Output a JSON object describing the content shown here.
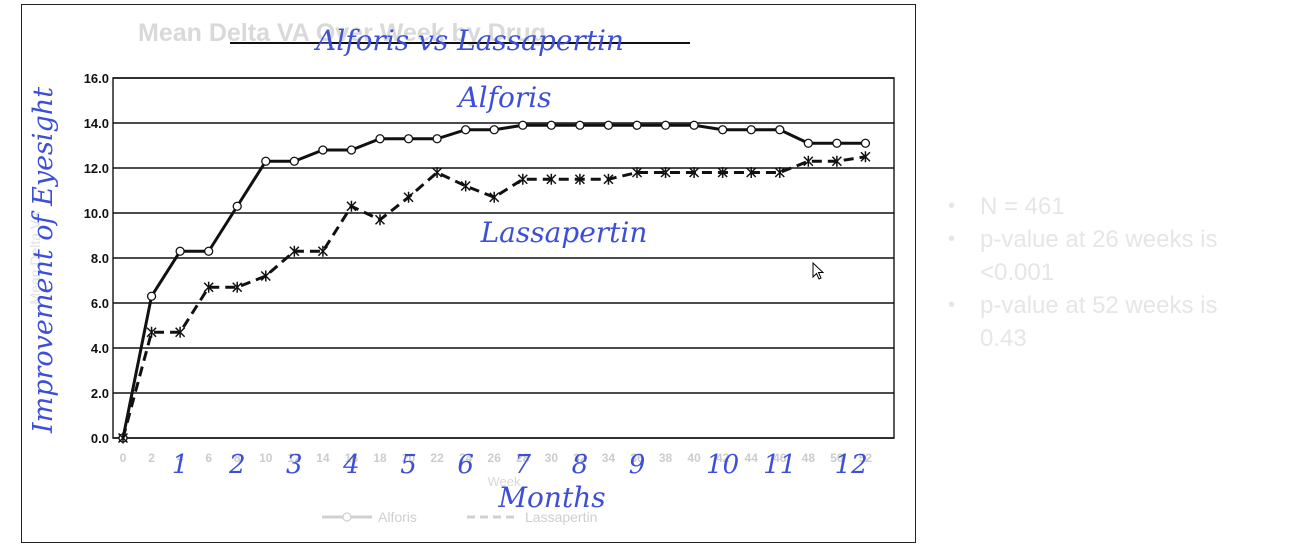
{
  "side_panel": {
    "bullets": [
      "N = 461",
      "p-value at 26 weeks is <0.001",
      "p-value at 52 weeks is 0.43"
    ]
  },
  "cursor_icon": "mouse-pointer-icon",
  "colors": {
    "annotation": "#3d4fd6",
    "series_line": "#111111",
    "faded_text": "#d9d9d9"
  },
  "chart_data": {
    "type": "line",
    "title": "Mean Delta VA Over Week by Drug",
    "annotation_title": "Alforis vs Lassapertin",
    "xlabel": "Week",
    "ylabel": "Mean Delta VA",
    "annotation_xlabel": "Months",
    "annotation_ylabel": "Improvement of Eyesight",
    "ylim": [
      0,
      16
    ],
    "yticks": [
      "0.0",
      "2.0",
      "4.0",
      "6.0",
      "8.0",
      "10.0",
      "12.0",
      "14.0",
      "16.0"
    ],
    "x": [
      0,
      2,
      4,
      6,
      8,
      10,
      12,
      14,
      16,
      18,
      20,
      22,
      24,
      26,
      28,
      30,
      32,
      34,
      36,
      38,
      40,
      42,
      44,
      46,
      48,
      50,
      52
    ],
    "month_labels": [
      "1",
      "2",
      "3",
      "4",
      "5",
      "6",
      "7",
      "8",
      "9",
      "10",
      "11",
      "12"
    ],
    "month_weeks": [
      4,
      8,
      12,
      16,
      20,
      24,
      28,
      32,
      36,
      42,
      46,
      51
    ],
    "grid": true,
    "legend_position": "bottom",
    "series": [
      {
        "name": "Alforis",
        "style": "solid",
        "marker": "circle",
        "annotation_label": "Alforis",
        "values": [
          0,
          6.3,
          8.3,
          8.3,
          10.3,
          12.3,
          12.3,
          12.8,
          12.8,
          13.3,
          13.3,
          13.3,
          13.7,
          13.7,
          13.9,
          13.9,
          13.9,
          13.9,
          13.9,
          13.9,
          13.9,
          13.7,
          13.7,
          13.7,
          13.1,
          13.1,
          13.1
        ]
      },
      {
        "name": "Lassapertin",
        "style": "dashed",
        "marker": "asterisk",
        "annotation_label": "Lassapertin",
        "values": [
          0,
          4.7,
          4.7,
          6.7,
          6.7,
          7.2,
          8.3,
          8.3,
          10.3,
          9.7,
          10.7,
          11.8,
          11.2,
          10.7,
          11.5,
          11.5,
          11.5,
          11.5,
          11.8,
          11.8,
          11.8,
          11.8,
          11.8,
          11.8,
          12.3,
          12.3,
          12.5
        ]
      }
    ]
  }
}
